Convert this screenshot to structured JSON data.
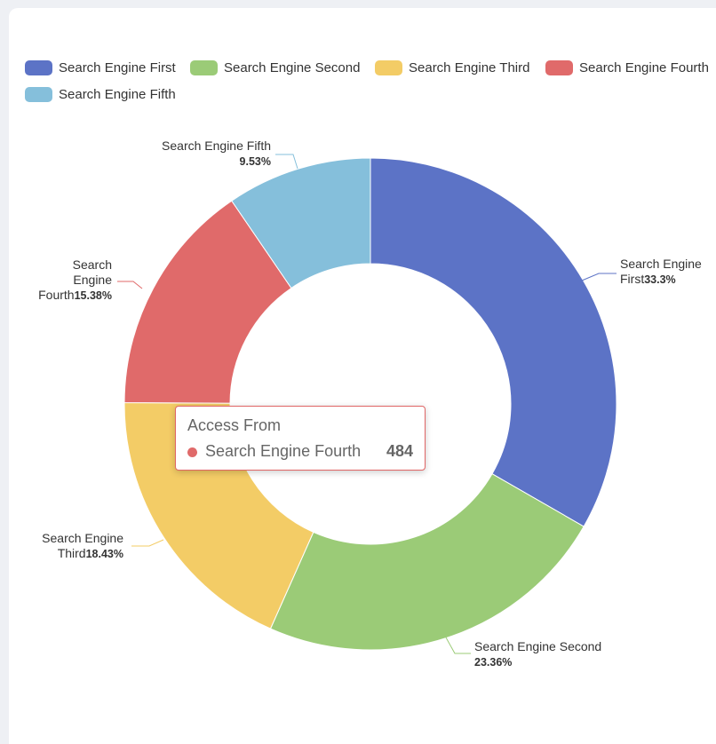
{
  "chart_data": {
    "type": "pie",
    "variant": "donut",
    "series_name": "Access From",
    "categories": [
      "Search Engine First",
      "Search Engine Second",
      "Search Engine Third",
      "Search Engine Fourth",
      "Search Engine Fifth"
    ],
    "values": [
      1048,
      735,
      580,
      484,
      300
    ],
    "percent_labels": [
      "33.3%",
      "23.36%",
      "18.43%",
      "15.38%",
      "9.53%"
    ],
    "colors": [
      "#5c73c6",
      "#9bcb77",
      "#f3cc66",
      "#e06a6a",
      "#85bfdb"
    ],
    "label_lines": {
      "Search Engine First": [
        "Search Engine",
        "First"
      ],
      "Search Engine Second": [
        "Search Engine Second"
      ],
      "Search Engine Third": [
        "Search Engine",
        "Third"
      ],
      "Search Engine Fourth": [
        "Search",
        "Engine",
        "Fourth"
      ],
      "Search Engine Fifth": [
        "Search Engine Fifth"
      ]
    },
    "legend_position": "top-left"
  },
  "tooltip": {
    "title": "Access From",
    "name": "Search Engine Fourth",
    "value": "484",
    "color": "#e06a6a"
  }
}
